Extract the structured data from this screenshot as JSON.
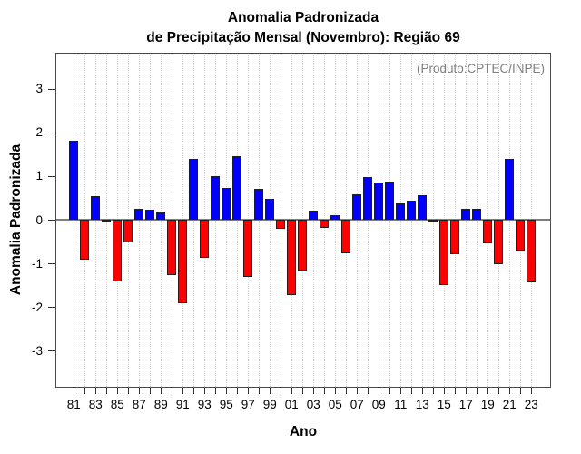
{
  "chart_data": {
    "type": "bar",
    "title_line1": "Anomalia Padronizada",
    "title_line2": "de Precipitação Mensal (Novembro): Região 69",
    "ylabel": "Anomalia Padronizada",
    "xlabel": "Ano",
    "annotation": "(Produto:CPTEC/INPE)",
    "years": [
      1981,
      1982,
      1983,
      1984,
      1985,
      1986,
      1987,
      1988,
      1989,
      1990,
      1991,
      1992,
      1993,
      1994,
      1995,
      1996,
      1997,
      1998,
      1999,
      2000,
      2001,
      2002,
      2003,
      2004,
      2005,
      2006,
      2007,
      2008,
      2009,
      2010,
      2011,
      2012,
      2013,
      2014,
      2015,
      2016,
      2017,
      2018,
      2019,
      2020,
      2021,
      2022,
      2023
    ],
    "values": [
      1.81,
      -0.92,
      0.54,
      -0.03,
      -1.42,
      -0.53,
      0.26,
      0.22,
      0.17,
      -1.26,
      -1.92,
      1.4,
      -0.88,
      1.0,
      0.72,
      1.45,
      -1.32,
      0.71,
      0.48,
      -0.2,
      -1.73,
      -1.17,
      0.2,
      -0.18,
      0.1,
      -0.78,
      0.58,
      0.98,
      0.85,
      0.87,
      0.38,
      0.44,
      0.56,
      -0.05,
      -1.5,
      -0.79,
      0.25,
      0.25,
      -0.55,
      -1.03,
      1.39,
      -0.71,
      -1.44
    ],
    "xtick_labels": [
      "81",
      "83",
      "85",
      "87",
      "89",
      "91",
      "93",
      "95",
      "97",
      "99",
      "01",
      "03",
      "05",
      "07",
      "09",
      "11",
      "13",
      "15",
      "17",
      "19",
      "21",
      "23"
    ],
    "ytick_labels": [
      -3,
      -2,
      -1,
      0,
      1,
      2,
      3
    ],
    "ylim": [
      -3.81,
      3.81
    ],
    "grid": "vertical-dotted-per-year",
    "legend": null,
    "colors": {
      "positive": "#0000ff",
      "negative": "#ff0000",
      "bar_border": "#1f1f1f",
      "zero_line": "#7d7d7d",
      "grid": "#d4d4d4",
      "axis": "#4a4a4a",
      "annotation": "#7f7f7f",
      "text": "#000000"
    }
  }
}
